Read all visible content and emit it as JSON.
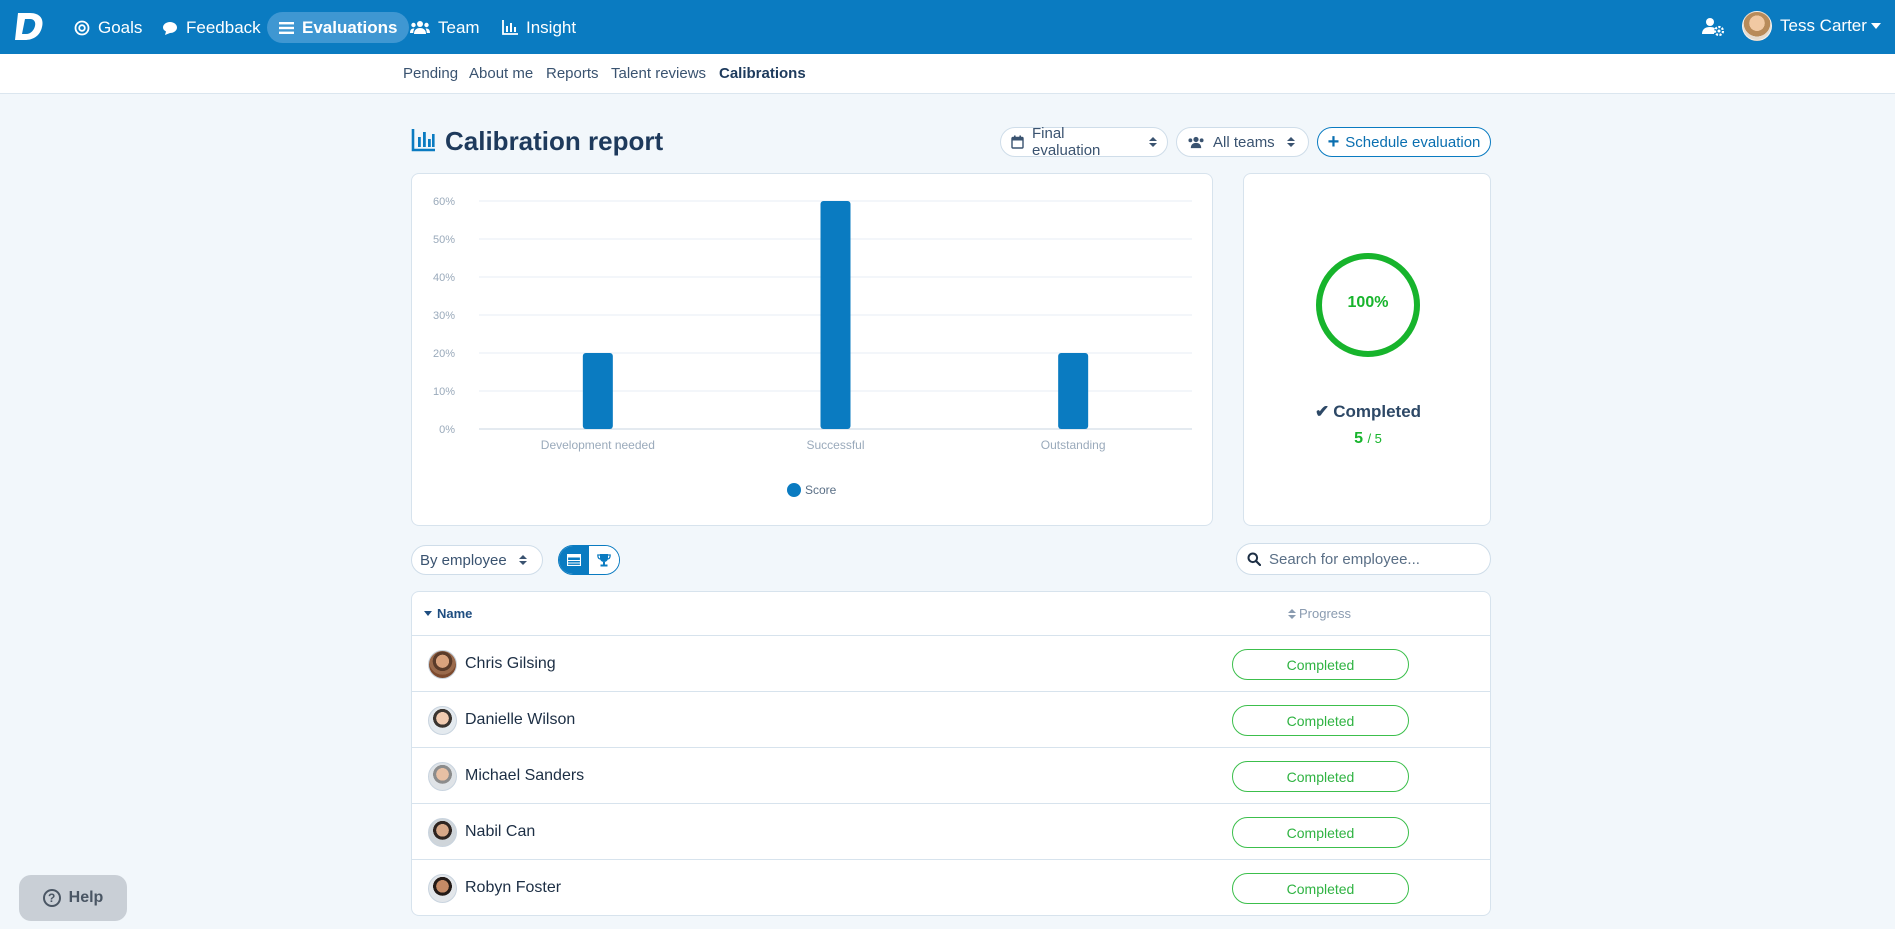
{
  "app": {
    "nav": [
      {
        "label": "Goals",
        "icon": "target-icon"
      },
      {
        "label": "Feedback",
        "icon": "chat-icon"
      },
      {
        "label": "Evaluations",
        "icon": "list-icon",
        "active": true
      },
      {
        "label": "Team",
        "icon": "users-icon"
      },
      {
        "label": "Insight",
        "icon": "chart-icon"
      }
    ],
    "user_name": "Tess Carter",
    "brand_color": "#0a7bc1"
  },
  "subnav": [
    {
      "label": "Pending"
    },
    {
      "label": "About me"
    },
    {
      "label": "Reports"
    },
    {
      "label": "Talent reviews"
    },
    {
      "label": "Calibrations",
      "active": true
    }
  ],
  "header": {
    "title": "Calibration report",
    "evaluation_select": "Final evaluation",
    "teams_select": "All teams",
    "schedule_label": "Schedule evaluation"
  },
  "chart_data": {
    "type": "bar",
    "categories": [
      "Development needed",
      "Successful",
      "Outstanding"
    ],
    "series": [
      {
        "name": "Score",
        "values": [
          20,
          60,
          20
        ]
      }
    ],
    "y_ticks": [
      "0%",
      "10%",
      "20%",
      "30%",
      "40%",
      "50%",
      "60%"
    ],
    "ylim": [
      0,
      60
    ],
    "grid": true,
    "legend": "bottom",
    "bar_color": "#0a7bc1"
  },
  "progress": {
    "percent_label": "100%",
    "percent": 100,
    "status_label": "Completed",
    "done": "5",
    "total": "/ 5",
    "color": "#17b42c"
  },
  "controls": {
    "group_by": "By employee",
    "search_placeholder": "Search for employee..."
  },
  "table": {
    "col_name": "Name",
    "col_progress": "Progress",
    "rows": [
      {
        "name": "Chris Gilsing",
        "status": "Completed"
      },
      {
        "name": "Danielle Wilson",
        "status": "Completed"
      },
      {
        "name": "Michael Sanders",
        "status": "Completed"
      },
      {
        "name": "Nabil Can",
        "status": "Completed"
      },
      {
        "name": "Robyn Foster",
        "status": "Completed"
      }
    ]
  },
  "help_label": "Help"
}
